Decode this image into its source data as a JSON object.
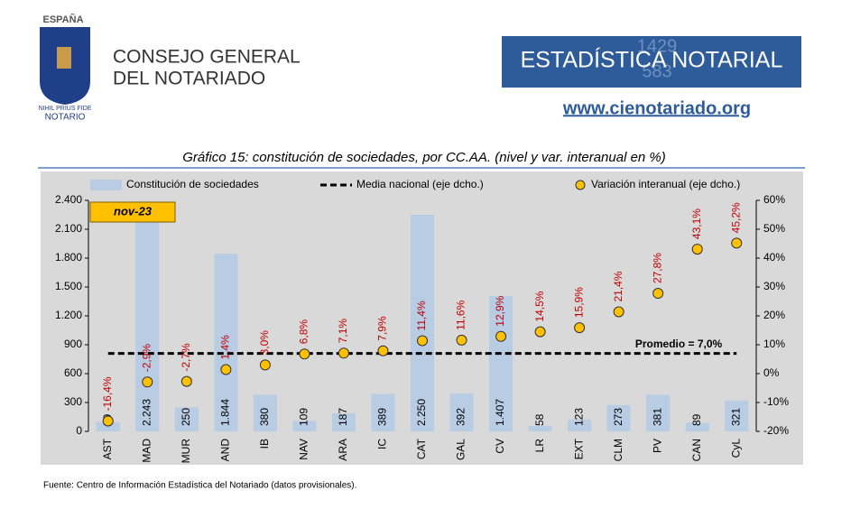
{
  "header": {
    "country": "ESPAÑA",
    "org_line1": "CONSEJO GENERAL",
    "org_line2": "DEL NOTARIADO",
    "motto": "NIHIL PRIUS FIDE",
    "notario": "NOTARIO",
    "brand": "ESTADÍSTICA NOTARIAL",
    "brand_digits_1": "1429",
    "brand_digits_2": "583",
    "url": "www.cienotariado.org"
  },
  "chart_data": {
    "type": "bar",
    "title": "Gráfico 15: constitución de sociedades, por CC.AA. (nivel y var. interanual en %)",
    "annotation": "nov-23",
    "categories": [
      "AST",
      "MAD",
      "MUR",
      "AND",
      "IB",
      "NAV",
      "ARA",
      "IC",
      "CAT",
      "GAL",
      "CV",
      "LR",
      "EXT",
      "CLM",
      "PV",
      "CAN",
      "CyL"
    ],
    "series": [
      {
        "name": "Constitución de sociedades",
        "type": "bar",
        "color": "#b8cce4",
        "values": [
          99,
          2243,
          250,
          1844,
          380,
          109,
          187,
          389,
          2250,
          392,
          1407,
          58,
          123,
          273,
          381,
          89,
          321
        ],
        "value_labels": [
          "99",
          "2.243",
          "250",
          "1.844",
          "380",
          "109",
          "187",
          "389",
          "2.250",
          "392",
          "1.407",
          "58",
          "123",
          "273",
          "381",
          "89",
          "321"
        ]
      },
      {
        "name": "Media nacional (eje dcho.)",
        "type": "line",
        "color": "#000000",
        "axis": "y2",
        "value": 7.0,
        "value_label": "Promedio = 7,0%"
      },
      {
        "name": "Variación interanual (eje dcho.)",
        "type": "scatter",
        "color": "#ffc000",
        "axis": "y2",
        "values": [
          -16.4,
          -2.9,
          -2.7,
          1.4,
          3.0,
          6.8,
          7.1,
          7.9,
          11.4,
          11.6,
          12.9,
          14.5,
          15.9,
          21.4,
          27.8,
          43.1,
          45.2
        ],
        "value_labels": [
          "-16,4%",
          "-2,9%",
          "-2,7%",
          "1,4%",
          "3,0%",
          "6,8%",
          "7,1%",
          "7,9%",
          "11,4%",
          "11,6%",
          "12,9%",
          "14,5%",
          "15,9%",
          "21,4%",
          "27,8%",
          "43,1%",
          "45,2%"
        ],
        "label_color": "#c00000"
      }
    ],
    "ylim": [
      0,
      2400
    ],
    "yticks": [
      0,
      300,
      600,
      900,
      {
        "value": 1200,
        "label": "1.200"
      },
      {
        "value": 1500,
        "label": "1.500"
      },
      {
        "value": 1800,
        "label": "1.800"
      },
      {
        "value": 2100,
        "label": "2.100"
      },
      {
        "value": 2400,
        "label": "2.400"
      }
    ],
    "y2lim": [
      -20,
      60
    ],
    "y2ticks": [
      {
        "value": -20,
        "label": "-20%"
      },
      {
        "value": -10,
        "label": "-10%"
      },
      {
        "value": 0,
        "label": "0%"
      },
      {
        "value": 10,
        "label": "10%"
      },
      {
        "value": 20,
        "label": "20%"
      },
      {
        "value": 30,
        "label": "30%"
      },
      {
        "value": 40,
        "label": "40%"
      },
      {
        "value": 50,
        "label": "50%"
      },
      {
        "value": 60,
        "label": "60%"
      }
    ],
    "grid": false
  },
  "footer": {
    "source": "Fuente: Centro de Información Estadística del Notariado (datos provisionales)."
  }
}
